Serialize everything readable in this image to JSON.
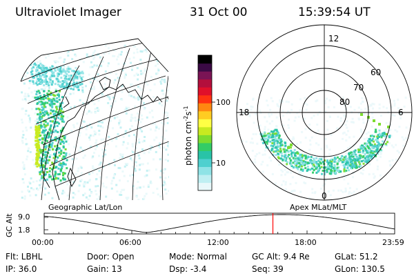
{
  "header": {
    "instrument": "Ultraviolet Imager",
    "date": "31 Oct 00",
    "time": "15:39:54 UT"
  },
  "colorbar": {
    "unit_text": "photon cm",
    "unit_sup1": "-2",
    "unit_mid": "s",
    "unit_sup2": "-1",
    "tick_100": "100",
    "tick_10": "10",
    "colors": [
      "#e8f8fa",
      "#bfeff2",
      "#8fe3e6",
      "#4fd0cf",
      "#29c3a7",
      "#33cc66",
      "#7ddc2f",
      "#c8ea20",
      "#ffff44",
      "#ffcc22",
      "#ff8811",
      "#ff3311",
      "#e0102a",
      "#b30f3c",
      "#7a1455",
      "#3a0a44",
      "#000000"
    ]
  },
  "geo_map": {
    "label": "Geographic Lat/Lon"
  },
  "polar_plot": {
    "label": "Apex MLat/MLT",
    "mlt_labels": {
      "top": "12",
      "left": "18",
      "right": "6",
      "bottom": "0"
    },
    "lat_labels": {
      "l60": "60",
      "l70": "70",
      "l80": "80"
    }
  },
  "orbit_plot": {
    "ylabel": "GC Alt",
    "yticks": {
      "high": "9.0",
      "low": "1.8"
    },
    "xticks": [
      "00:00",
      "06:00",
      "12:00",
      "18:00",
      "23:59"
    ],
    "current_time_marker_hours": 15.66,
    "marker_color": "#ff0000"
  },
  "info": {
    "filter": "Flt: LBHL",
    "ip": "IP: 36.0",
    "door": "Door: Open",
    "gain": "Gain: 13",
    "mode": "Mode: Normal",
    "dsp": "Dsp:   -3.4",
    "gc_alt": "GC Alt: 9.4 Re",
    "seq": "Seq: 39",
    "glat": "GLat:  51.2",
    "glon": "GLon: 130.5"
  }
}
